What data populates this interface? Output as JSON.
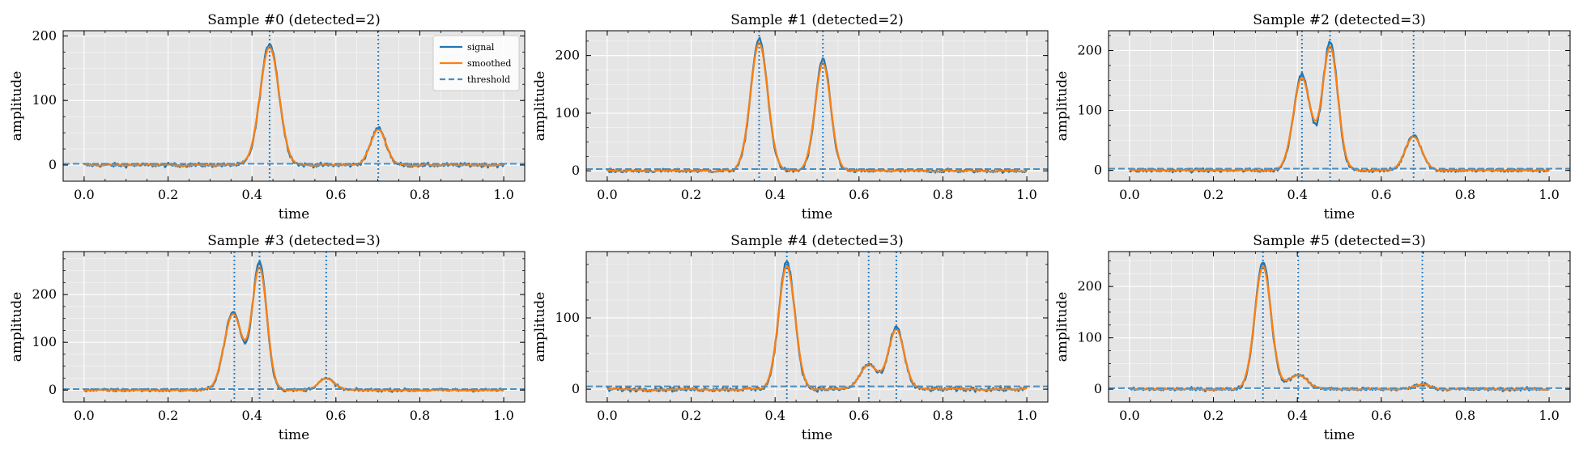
{
  "legend": {
    "signal": "signal",
    "smoothed": "smoothed",
    "threshold": "threshold"
  },
  "colors": {
    "signal": "#1f77b4",
    "smoothed": "#ff7f0e",
    "threshold": "#4a8dc0",
    "detect": "#2f7fc0",
    "plot_bg": "#e5e5e5"
  },
  "chart_data": [
    {
      "type": "line",
      "title": "Sample #0 (detected=2)",
      "xlabel": "time",
      "ylabel": "amplitude",
      "xlim": [
        -0.05,
        1.05
      ],
      "ylim": [
        -25,
        208
      ],
      "yticks": [
        0,
        100,
        200
      ],
      "xticks": [
        0.0,
        0.2,
        0.4,
        0.6,
        0.8,
        1.0
      ],
      "threshold": 2,
      "detected_x": [
        0.442,
        0.701
      ],
      "peaks": [
        {
          "c": 0.442,
          "a": 188,
          "w": 0.022
        },
        {
          "c": 0.701,
          "a": 57,
          "w": 0.018
        }
      ],
      "legend": true,
      "grid": true,
      "legend_position": "top-right"
    },
    {
      "type": "line",
      "title": "Sample #1 (detected=2)",
      "xlabel": "time",
      "ylabel": "amplitude",
      "xlim": [
        -0.05,
        1.05
      ],
      "ylim": [
        -18,
        243
      ],
      "yticks": [
        0,
        100,
        200
      ],
      "xticks": [
        0.0,
        0.2,
        0.4,
        0.6,
        0.8,
        1.0
      ],
      "threshold": 3,
      "detected_x": [
        0.362,
        0.514
      ],
      "peaks": [
        {
          "c": 0.362,
          "a": 228,
          "w": 0.02
        },
        {
          "c": 0.514,
          "a": 193,
          "w": 0.018
        }
      ],
      "legend": false,
      "grid": true
    },
    {
      "type": "line",
      "title": "Sample #2 (detected=3)",
      "xlabel": "time",
      "ylabel": "amplitude",
      "xlim": [
        -0.05,
        1.05
      ],
      "ylim": [
        -18,
        233
      ],
      "yticks": [
        0,
        100,
        200
      ],
      "xticks": [
        0.0,
        0.2,
        0.4,
        0.6,
        0.8,
        1.0
      ],
      "threshold": 3,
      "detected_x": [
        0.411,
        0.478,
        0.677
      ],
      "peaks": [
        {
          "c": 0.411,
          "a": 160,
          "w": 0.02
        },
        {
          "c": 0.478,
          "a": 213,
          "w": 0.018
        },
        {
          "c": 0.677,
          "a": 59,
          "w": 0.019
        }
      ],
      "legend": false,
      "grid": true
    },
    {
      "type": "line",
      "title": "Sample #3 (detected=3)",
      "xlabel": "time",
      "ylabel": "amplitude",
      "xlim": [
        -0.05,
        1.05
      ],
      "ylim": [
        -25,
        290
      ],
      "yticks": [
        0,
        100,
        200
      ],
      "xticks": [
        0.0,
        0.2,
        0.4,
        0.6,
        0.8,
        1.0
      ],
      "threshold": 2,
      "detected_x": [
        0.358,
        0.418,
        0.577
      ],
      "peaks": [
        {
          "c": 0.355,
          "a": 163,
          "w": 0.021
        },
        {
          "c": 0.418,
          "a": 267,
          "w": 0.017
        },
        {
          "c": 0.577,
          "a": 24,
          "w": 0.019
        }
      ],
      "legend": false,
      "grid": true
    },
    {
      "type": "line",
      "title": "Sample #4 (detected=3)",
      "xlabel": "time",
      "ylabel": "amplitude",
      "xlim": [
        -0.05,
        1.05
      ],
      "ylim": [
        -18,
        193
      ],
      "yticks": [
        0,
        100
      ],
      "xticks": [
        0.0,
        0.2,
        0.4,
        0.6,
        0.8,
        1.0
      ],
      "threshold": 4,
      "detected_x": [
        0.428,
        0.623,
        0.689
      ],
      "peaks": [
        {
          "c": 0.428,
          "a": 178,
          "w": 0.019
        },
        {
          "c": 0.623,
          "a": 35,
          "w": 0.02
        },
        {
          "c": 0.689,
          "a": 87,
          "w": 0.018
        }
      ],
      "legend": false,
      "grid": true
    },
    {
      "type": "line",
      "title": "Sample #5 (detected=3)",
      "xlabel": "time",
      "ylabel": "amplitude",
      "xlim": [
        -0.05,
        1.05
      ],
      "ylim": [
        -25,
        268
      ],
      "yticks": [
        0,
        100,
        200
      ],
      "xticks": [
        0.0,
        0.2,
        0.4,
        0.6,
        0.8,
        1.0
      ],
      "threshold": 2,
      "detected_x": [
        0.318,
        0.402,
        0.698
      ],
      "peaks": [
        {
          "c": 0.318,
          "a": 248,
          "w": 0.019
        },
        {
          "c": 0.402,
          "a": 28,
          "w": 0.022
        },
        {
          "c": 0.698,
          "a": 10,
          "w": 0.018
        }
      ],
      "legend": false,
      "grid": true
    }
  ]
}
